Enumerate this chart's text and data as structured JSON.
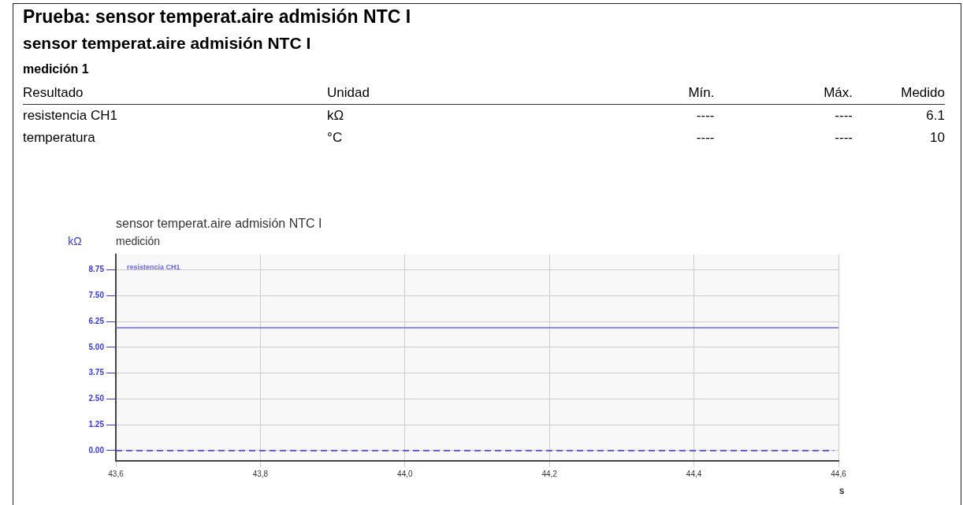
{
  "chart_data": {
    "type": "line",
    "title": "sensor temperat.aire admisión NTC I",
    "subtitle": "medición",
    "ylabel": "kΩ",
    "xlabel": "s",
    "annotations": [
      "Prueba: sensor temperat.aire admisión NTC I",
      "sensor temperat.aire admisión NTC I",
      "medición  1",
      "Resultado",
      "Unidad",
      "Mín.",
      "Máx.",
      "Medido",
      "resistencia CH1",
      "kΩ",
      "----",
      "----",
      "6.1",
      "temperatura",
      "°C",
      "----",
      "----",
      "10"
    ],
    "x": [
      43.6,
      44.6
    ],
    "series": [
      {
        "name": "resistencia CH1",
        "color": "#6666ff",
        "values": [
          5.95,
          5.95
        ]
      }
    ],
    "xlim": [
      43.6,
      44.6
    ],
    "xticks": [
      {
        "value": 43.6,
        "label": "43,6"
      },
      {
        "value": 43.8,
        "label": "43,8"
      },
      {
        "value": 44.0,
        "label": "44,0"
      },
      {
        "value": 44.2,
        "label": "44,2"
      },
      {
        "value": 44.4,
        "label": "44,4"
      },
      {
        "value": 44.6,
        "label": "44,6"
      }
    ],
    "ylim": [
      -0.5,
      9.5
    ],
    "yticks": [
      {
        "value": 0,
        "label": "0.00"
      },
      1.25,
      {
        "value": 2.5,
        "label": "2.50"
      },
      3.75,
      {
        "value": 5,
        "label": "5.00"
      },
      6.25,
      {
        "value": 7.5,
        "label": "7.50"
      },
      8.75
    ],
    "ref_lines": [
      {
        "axis": "y",
        "value": 0,
        "color": "#3333ff",
        "line_style": "dashed"
      }
    ],
    "grid": true,
    "legend": "top left",
    "marker": "none",
    "line_style": "solid"
  }
}
